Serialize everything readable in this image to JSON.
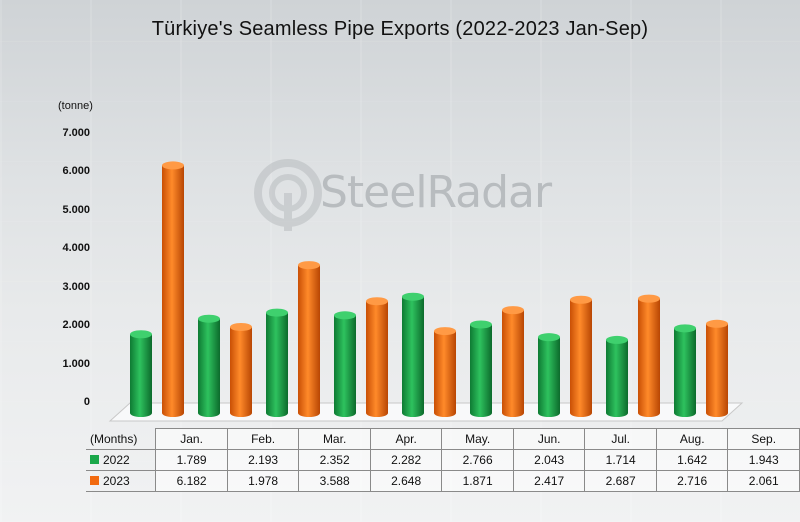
{
  "chart_data": {
    "type": "bar",
    "title": "Türkiye's Seamless Pipe Exports (2022-2023 Jan-Sep)",
    "ylabel": "(tonne)",
    "xlabel": "(Months)",
    "ylim": [
      0,
      7000
    ],
    "yticks": [
      "0",
      "1.000",
      "2.000",
      "3.000",
      "4.000",
      "5.000",
      "6.000",
      "7.000"
    ],
    "yticks_values": [
      0,
      1000,
      2000,
      3000,
      4000,
      5000,
      6000,
      7000
    ],
    "categories": [
      "Jan.",
      "Feb.",
      "Mar.",
      "Apr.",
      "May.",
      "Jun.",
      "Jul.",
      "Aug.",
      "Sep."
    ],
    "series": [
      {
        "name": "2022",
        "color": "#1aa84a",
        "values": [
          1789,
          2193,
          2352,
          2282,
          2766,
          2043,
          1714,
          1642,
          1943
        ],
        "labels": [
          "1.789",
          "2.193",
          "2.352",
          "2.282",
          "2.766",
          "2.043",
          "1.714",
          "1.642",
          "1.943"
        ]
      },
      {
        "name": "2023",
        "color": "#f26a10",
        "values": [
          6182,
          1978,
          3588,
          2648,
          1871,
          2417,
          2687,
          2716,
          2061
        ],
        "labels": [
          "6.182",
          "1.978",
          "3.588",
          "2.648",
          "1.871",
          "2.417",
          "2.687",
          "2.716",
          "2.061"
        ]
      }
    ],
    "legend": "in-table"
  },
  "watermark": {
    "text": "SteelRadar"
  }
}
